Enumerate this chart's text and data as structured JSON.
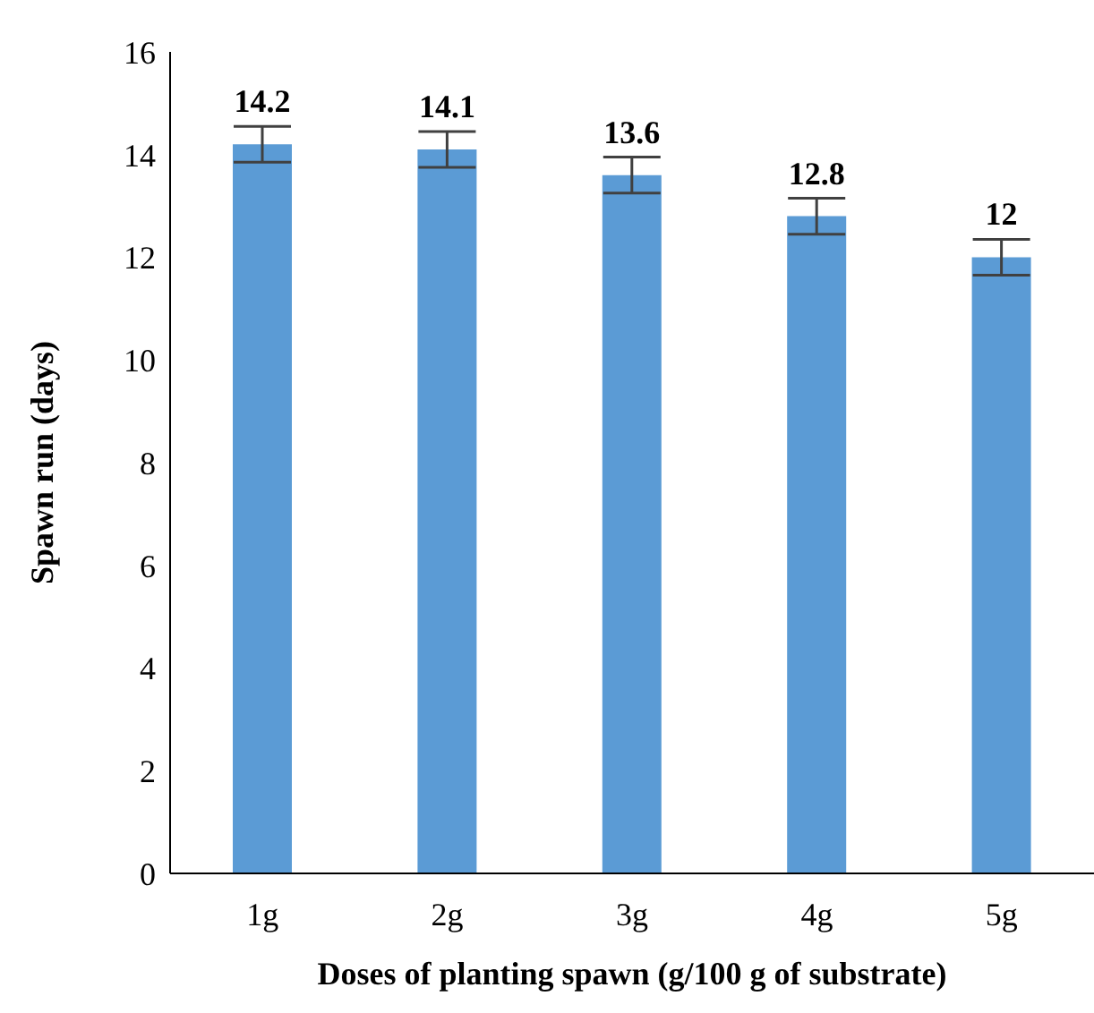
{
  "chart_data": {
    "type": "bar",
    "xlabel": "Doses of planting spawn (g/100 g of substrate)",
    "ylabel": "Spawn run (days)",
    "categories": [
      "1g",
      "2g",
      "3g",
      "4g",
      "5g"
    ],
    "values": [
      14.2,
      14.1,
      13.6,
      12.8,
      12
    ],
    "errors": [
      0.35,
      0.35,
      0.35,
      0.35,
      0.35
    ],
    "color": "#5b9bd5",
    "ylim": [
      0,
      16
    ],
    "yticks": [
      0,
      2,
      4,
      6,
      8,
      10,
      12,
      14,
      16
    ],
    "data_labels": true,
    "grid": false,
    "legend": false
  }
}
